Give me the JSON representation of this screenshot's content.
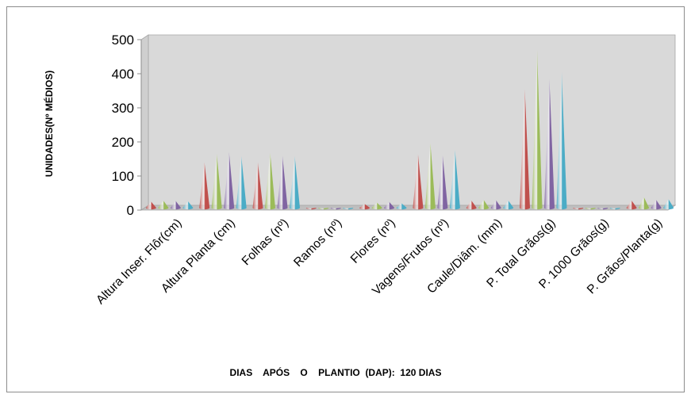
{
  "chart_data": {
    "type": "bar",
    "bar_shape": "cone",
    "title": "",
    "xlabel": "DIAS    APÓS    O    PLANTIO  (DAP):  120 DIAS",
    "ylabel": "UNIDADES(Nº MÉDIOS)",
    "ylim": [
      0,
      500
    ],
    "yticks": [
      "0",
      "100",
      "200",
      "300",
      "400",
      "500"
    ],
    "grid": false,
    "legend": "none",
    "categories": [
      "Altura Inser. Flôr(cm)",
      "Altura Planta (cm)",
      "Folhas (nº)",
      "Ramos (nº)",
      "Flores (nº)",
      "Vagens/Frutos (nº)",
      "Caule/Diâm. (mm)",
      "P. Total Grãos(g)",
      "P. 1000 Grãos(g)",
      "P. Grãos/Planta(g)"
    ],
    "series": [
      {
        "color": "#c0504d",
        "values": [
          25,
          140,
          140,
          5,
          18,
          165,
          28,
          355,
          5,
          28
        ]
      },
      {
        "color": "#9bbb59",
        "values": [
          28,
          165,
          168,
          5,
          22,
          198,
          30,
          470,
          5,
          38
        ]
      },
      {
        "color": "#8064a2",
        "values": [
          27,
          170,
          160,
          5,
          24,
          162,
          29,
          385,
          5,
          30
        ]
      },
      {
        "color": "#4bacc6",
        "values": [
          26,
          158,
          158,
          5,
          20,
          178,
          28,
          405,
          5,
          32
        ]
      }
    ]
  }
}
